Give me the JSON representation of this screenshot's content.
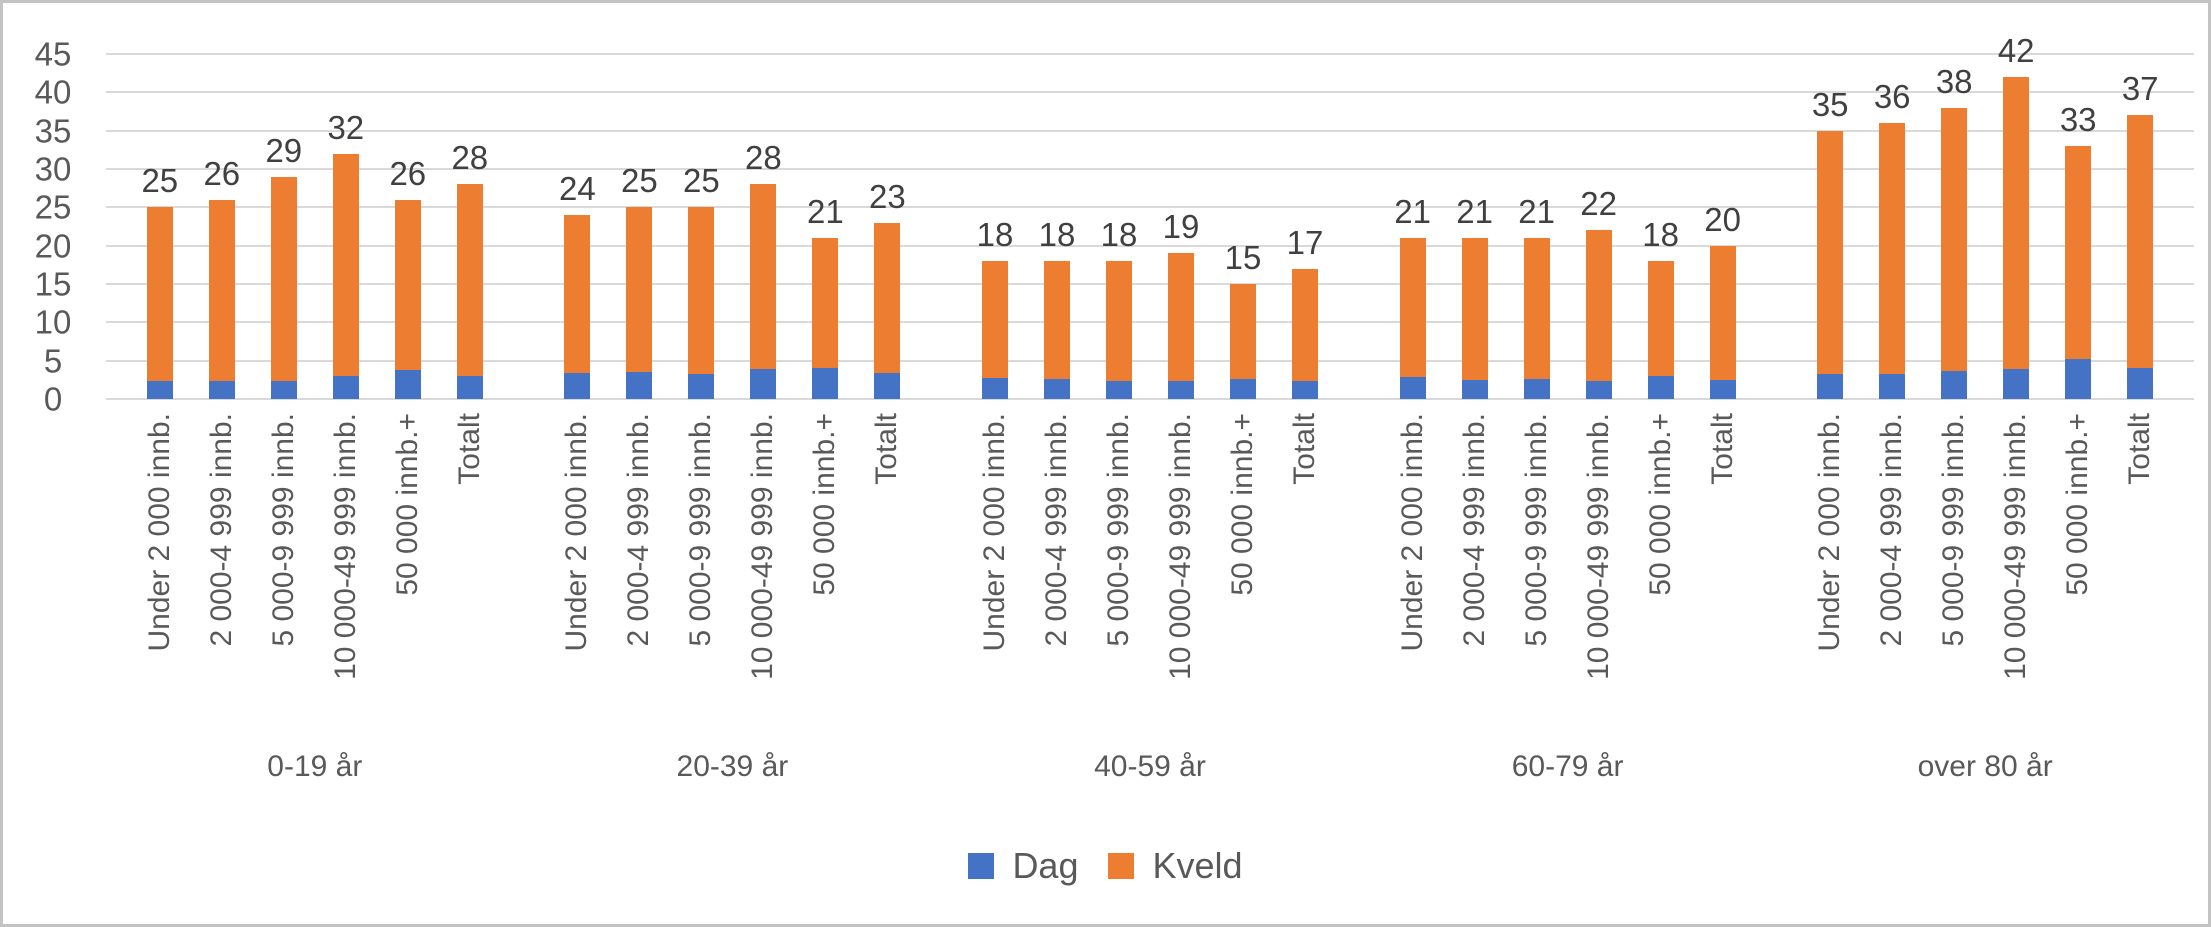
{
  "chart_data": {
    "type": "bar",
    "stacked": true,
    "title": "",
    "xlabel": "",
    "ylabel": "",
    "ylim": [
      0,
      45
    ],
    "yticks": [
      0,
      5,
      10,
      15,
      20,
      25,
      30,
      35,
      40,
      45
    ],
    "grid": true,
    "legend_position": "bottom",
    "grid_color": "#d9d9d9",
    "groups": [
      "0-19 år",
      "20-39 år",
      "40-59 år",
      "60-79 år",
      "over 80 år"
    ],
    "categories": [
      "Under 2 000 innb.",
      "2 000-4 999 innb.",
      "5 000-9 999 innb.",
      "10 000-49 999 innb.",
      "50 000 innb.+",
      "Totalt"
    ],
    "totals": [
      [
        25,
        26,
        29,
        32,
        26,
        28
      ],
      [
        24,
        25,
        25,
        28,
        21,
        23
      ],
      [
        18,
        18,
        18,
        19,
        15,
        17
      ],
      [
        21,
        21,
        21,
        22,
        18,
        20
      ],
      [
        35,
        36,
        38,
        42,
        33,
        37
      ]
    ],
    "series": [
      {
        "name": "Dag",
        "color": "#4472c4",
        "values": [
          [
            2.4,
            2.3,
            2.3,
            3.0,
            3.8,
            3.0
          ],
          [
            3.4,
            3.5,
            3.2,
            3.9,
            4.0,
            3.4
          ],
          [
            2.7,
            2.6,
            2.4,
            2.4,
            2.6,
            2.3
          ],
          [
            2.9,
            2.5,
            2.6,
            2.4,
            3.0,
            2.5
          ],
          [
            3.2,
            3.3,
            3.7,
            3.9,
            5.2,
            4.1
          ]
        ]
      },
      {
        "name": "Kveld",
        "color": "#ed7d31",
        "values": [
          [
            22.6,
            23.7,
            26.7,
            29.0,
            22.2,
            25.0
          ],
          [
            20.6,
            21.5,
            21.8,
            24.1,
            17.0,
            19.6
          ],
          [
            15.3,
            15.4,
            15.6,
            16.6,
            12.4,
            14.7
          ],
          [
            18.1,
            18.5,
            18.4,
            19.6,
            15.0,
            17.5
          ],
          [
            31.8,
            32.7,
            34.3,
            38.1,
            27.8,
            32.9
          ]
        ]
      }
    ]
  },
  "legend": {
    "items": [
      {
        "label": "Dag",
        "color": "#4472c4"
      },
      {
        "label": "Kveld",
        "color": "#ed7d31"
      }
    ]
  }
}
